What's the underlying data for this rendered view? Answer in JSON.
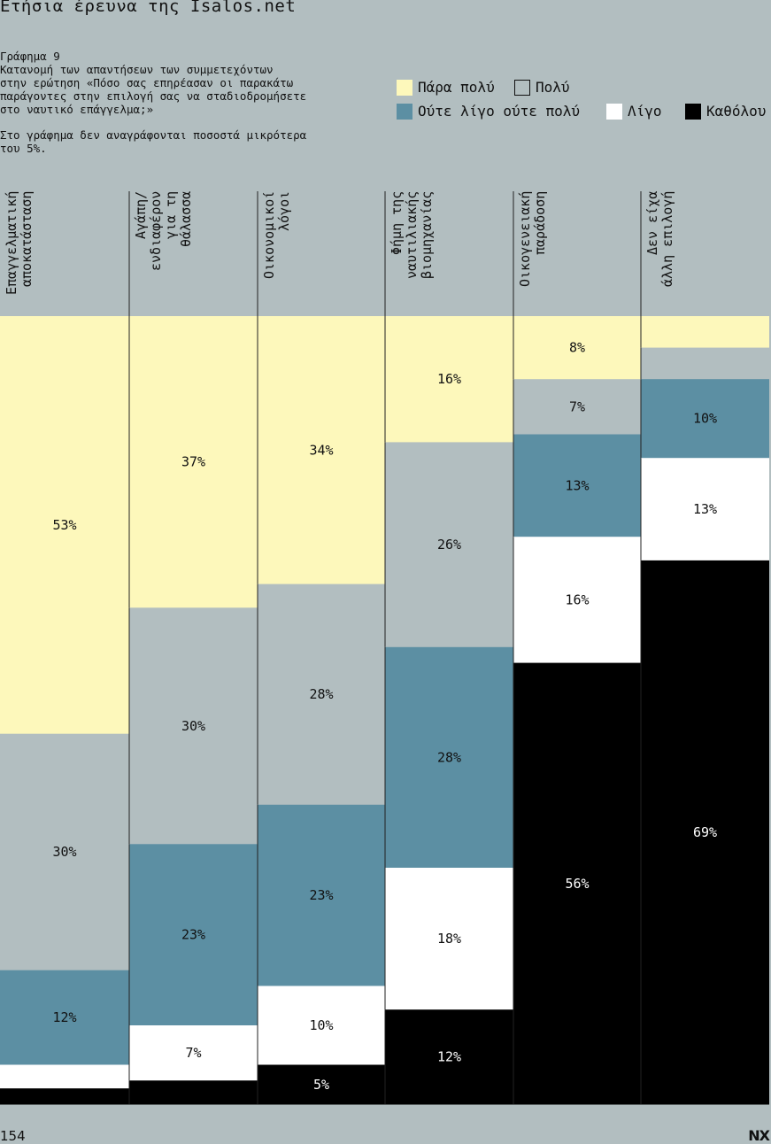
{
  "header": {
    "title": "Ετήσια έρευνα της Isalos.net"
  },
  "intro": {
    "paragraph": "Γράφημα 9\nΚατανομή των απαντήσεων των συμμετεχόντων\nστην ερώτηση «Πόσο σας επηρέασαν οι παρακάτω\nπαράγοντες στην επιλογή σας να σταδιοδρομήσετε\nστο ναυτικό επάγγελμα;»",
    "note": "Στο γράφημα δεν αναγράφονται ποσοστά μικρότερα\nτου 5%."
  },
  "legend": [
    {
      "label": "Πάρα πολύ",
      "color": "#fdf8bb"
    },
    {
      "label": "Πολύ",
      "color": "#b2bec0"
    },
    {
      "label": "Ούτε λίγο ούτε πολύ",
      "color": "#5c8fa3"
    },
    {
      "label": "Λίγο",
      "color": "#ffffff"
    },
    {
      "label": "Καθόλου",
      "color": "#000000"
    }
  ],
  "chart_data": {
    "type": "bar",
    "stacked": true,
    "categories": [
      "Επαγγελματική\nαποκατάσταση",
      "Αγάπη/\nενδιαφέρον\nγια τη\nθάλασσα",
      "Οικονομικοί\nλόγοι",
      "Φήμη της\nναυτιλιακής\nβιομηχανίας",
      "Οικογενειακή\nπαράδοση",
      "Δεν είχα\nάλλη επιλογή"
    ],
    "series": [
      {
        "name": "Πάρα πολύ",
        "color": "#fdf8bb",
        "label_color": "#111111",
        "values": [
          53,
          37,
          34,
          16,
          8,
          4
        ]
      },
      {
        "name": "Πολύ",
        "color": "#b2bec0",
        "label_color": "#111111",
        "values": [
          30,
          30,
          28,
          26,
          7,
          4
        ]
      },
      {
        "name": "Ούτε λίγο ούτε πολύ",
        "color": "#5c8fa3",
        "label_color": "#111111",
        "values": [
          12,
          23,
          23,
          28,
          13,
          10
        ]
      },
      {
        "name": "Λίγο",
        "color": "#ffffff",
        "label_color": "#111111",
        "values": [
          3,
          7,
          10,
          18,
          16,
          13
        ]
      },
      {
        "name": "Καθόλου",
        "color": "#000000",
        "label_color": "#ffffff",
        "values": [
          2,
          3,
          5,
          12,
          56,
          69
        ]
      }
    ],
    "ylim": [
      0,
      100
    ],
    "label_min": 5,
    "value_suffix": "%"
  },
  "footer": {
    "page_number": "154",
    "logo": "NX"
  }
}
